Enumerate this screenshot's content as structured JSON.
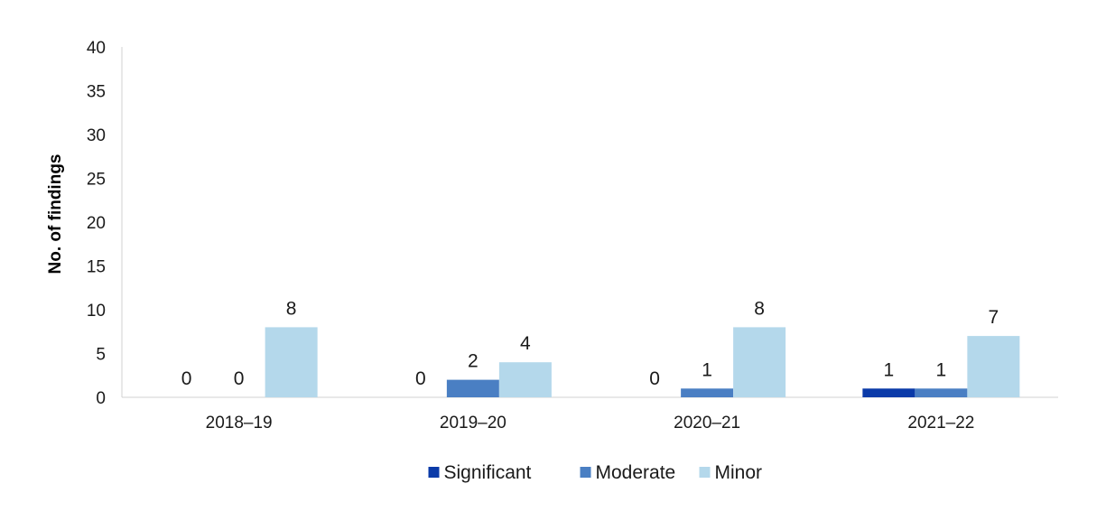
{
  "chart_data": {
    "type": "bar",
    "title": "",
    "xlabel": "",
    "ylabel": "No. of findings",
    "ylim": [
      0,
      40
    ],
    "yticks": [
      0,
      5,
      10,
      15,
      20,
      25,
      30,
      35,
      40
    ],
    "categories": [
      "2018–19",
      "2019–20",
      "2020–21",
      "2021–22"
    ],
    "series": [
      {
        "name": "Significant",
        "color": "#0a3aa8",
        "values": [
          0,
          0,
          0,
          1
        ]
      },
      {
        "name": "Moderate",
        "color": "#4a7fc3",
        "values": [
          0,
          2,
          1,
          1
        ]
      },
      {
        "name": "Minor",
        "color": "#b4d8eb",
        "values": [
          8,
          4,
          8,
          7
        ]
      }
    ],
    "data_labels": true,
    "grid": false,
    "legend_position": "bottom-center"
  }
}
